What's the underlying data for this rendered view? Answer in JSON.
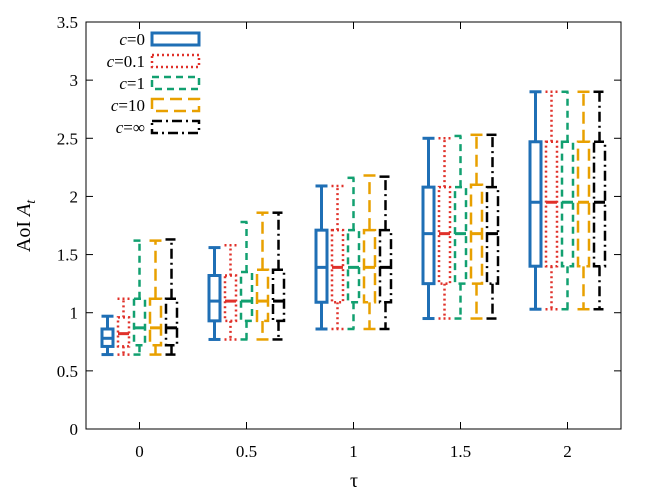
{
  "chart_data": {
    "type": "boxplot",
    "xlabel": "τ",
    "ylabel_main": "AoI ",
    "ylabel_var": "A",
    "ylabel_sub": "t",
    "ylim": [
      0,
      3.5
    ],
    "yticks": [
      "0",
      "0.5",
      "1",
      "1.5",
      "2",
      "2.5",
      "3",
      "3.5"
    ],
    "ytick_values": [
      0,
      0.5,
      1,
      1.5,
      2,
      2.5,
      3,
      3.5
    ],
    "categories": [
      "0",
      "0.5",
      "1",
      "1.5",
      "2"
    ],
    "legend_position": "top-left",
    "grid": false,
    "series": [
      {
        "legend_var": "c",
        "legend_val": "=0",
        "color": "#1f6fb5",
        "dash": "",
        "boxes": [
          {
            "min": 0.64,
            "q1": 0.71,
            "median": 0.78,
            "q3": 0.86,
            "max": 0.97
          },
          {
            "min": 0.77,
            "q1": 0.93,
            "median": 1.1,
            "q3": 1.32,
            "max": 1.56
          },
          {
            "min": 0.86,
            "q1": 1.09,
            "median": 1.39,
            "q3": 1.71,
            "max": 2.09
          },
          {
            "min": 0.95,
            "q1": 1.25,
            "median": 1.68,
            "q3": 2.08,
            "max": 2.5
          },
          {
            "min": 1.03,
            "q1": 1.4,
            "median": 1.95,
            "q3": 2.47,
            "max": 2.9
          }
        ]
      },
      {
        "legend_var": "c",
        "legend_val": "=0.1",
        "color": "#e0312a",
        "dash": "2,3",
        "boxes": [
          {
            "min": 0.64,
            "q1": 0.71,
            "median": 0.82,
            "q3": 0.96,
            "max": 1.12
          },
          {
            "min": 0.77,
            "q1": 0.93,
            "median": 1.1,
            "q3": 1.32,
            "max": 1.58
          },
          {
            "min": 0.86,
            "q1": 1.09,
            "median": 1.39,
            "q3": 1.71,
            "max": 2.09
          },
          {
            "min": 0.95,
            "q1": 1.25,
            "median": 1.68,
            "q3": 2.08,
            "max": 2.5
          },
          {
            "min": 1.03,
            "q1": 1.4,
            "median": 1.95,
            "q3": 2.47,
            "max": 2.9
          }
        ]
      },
      {
        "legend_var": "c",
        "legend_val": "=1",
        "color": "#12a070",
        "dash": "7,5",
        "boxes": [
          {
            "min": 0.64,
            "q1": 0.72,
            "median": 0.87,
            "q3": 1.12,
            "max": 1.62
          },
          {
            "min": 0.77,
            "q1": 0.93,
            "median": 1.1,
            "q3": 1.35,
            "max": 1.78
          },
          {
            "min": 0.86,
            "q1": 1.09,
            "median": 1.39,
            "q3": 1.71,
            "max": 2.16
          },
          {
            "min": 0.95,
            "q1": 1.25,
            "median": 1.68,
            "q3": 2.08,
            "max": 2.52
          },
          {
            "min": 1.03,
            "q1": 1.4,
            "median": 1.95,
            "q3": 2.47,
            "max": 2.9
          }
        ]
      },
      {
        "legend_var": "c",
        "legend_val": "=10",
        "color": "#e8a000",
        "dash": "12,6",
        "boxes": [
          {
            "min": 0.64,
            "q1": 0.72,
            "median": 0.87,
            "q3": 1.12,
            "max": 1.62
          },
          {
            "min": 0.77,
            "q1": 0.93,
            "median": 1.1,
            "q3": 1.37,
            "max": 1.86
          },
          {
            "min": 0.86,
            "q1": 1.09,
            "median": 1.39,
            "q3": 1.71,
            "max": 2.18
          },
          {
            "min": 0.95,
            "q1": 1.25,
            "median": 1.68,
            "q3": 2.1,
            "max": 2.53
          },
          {
            "min": 1.03,
            "q1": 1.4,
            "median": 1.95,
            "q3": 2.47,
            "max": 2.9
          }
        ]
      },
      {
        "legend_var": "c",
        "legend_val": "=∞",
        "color": "#000000",
        "dash": "10,4,2,4",
        "boxes": [
          {
            "min": 0.64,
            "q1": 0.72,
            "median": 0.87,
            "q3": 1.12,
            "max": 1.63
          },
          {
            "min": 0.77,
            "q1": 0.93,
            "median": 1.1,
            "q3": 1.37,
            "max": 1.86
          },
          {
            "min": 0.86,
            "q1": 1.09,
            "median": 1.39,
            "q3": 1.71,
            "max": 2.17
          },
          {
            "min": 0.95,
            "q1": 1.25,
            "median": 1.68,
            "q3": 2.08,
            "max": 2.53
          },
          {
            "min": 1.03,
            "q1": 1.4,
            "median": 1.95,
            "q3": 2.47,
            "max": 2.9
          }
        ]
      }
    ]
  }
}
